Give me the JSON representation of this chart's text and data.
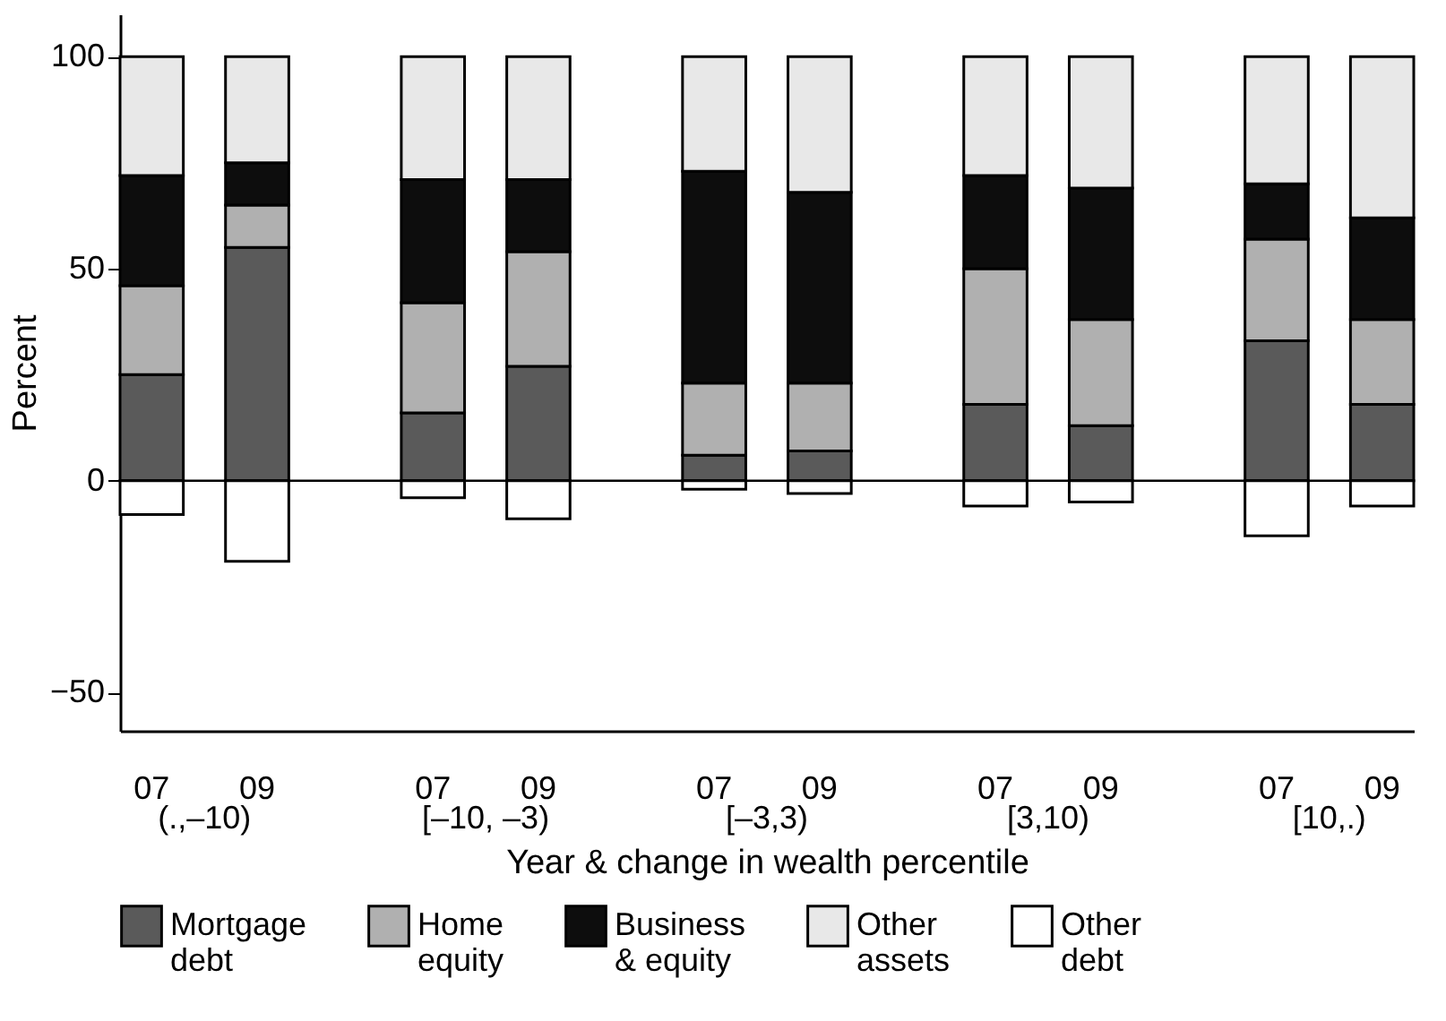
{
  "chart_data": {
    "type": "bar",
    "stacked": true,
    "xlabel": "Year & change in wealth percentile",
    "ylabel": "Percent",
    "categories": [
      "07",
      "09",
      "07",
      "09",
      "07",
      "09",
      "07",
      "09",
      "07",
      "09"
    ],
    "series": [
      {
        "name": "Mortgage debt",
        "color": "#5a5a5a",
        "values": [
          25,
          55,
          16,
          27,
          6,
          7,
          18,
          13,
          33,
          18
        ]
      },
      {
        "name": "Home equity",
        "color": "#b0b0b0",
        "values": [
          21,
          10,
          26,
          27,
          17,
          16,
          32,
          25,
          24,
          20
        ]
      },
      {
        "name": "Business & equity",
        "color": "#0d0d0d",
        "values": [
          26,
          10,
          29,
          17,
          50,
          45,
          22,
          31,
          13,
          24
        ]
      },
      {
        "name": "Other assets",
        "color": "#e8e8e8",
        "values": [
          28,
          25,
          29,
          29,
          27,
          32,
          28,
          31,
          30,
          38
        ]
      },
      {
        "name": "Other debt",
        "color": "#ffffff",
        "values": [
          -8,
          -19,
          -4,
          -9,
          -2,
          -3,
          -6,
          -5,
          -13,
          -6
        ]
      }
    ],
    "annotations": [
      "(.,–10)",
      "[–10, –3)",
      "[–3,3)",
      "[3,10)",
      "[10,.)"
    ],
    "ylim": [
      -59,
      110
    ],
    "yticks": [
      {
        "value": -50,
        "label": "−50"
      },
      0,
      50,
      100
    ],
    "ref_lines": [
      {
        "axis": "y",
        "value": 0
      }
    ],
    "legend": "bottom"
  }
}
